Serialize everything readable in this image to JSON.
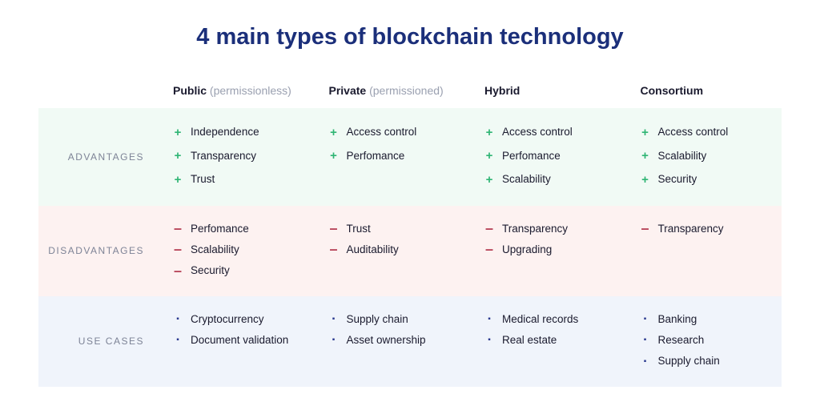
{
  "title": "4 main types of blockchain technology",
  "title_fontsize": 29,
  "title_color": "#1b2f7a",
  "colors": {
    "text": "#1a1a2e",
    "muted": "#9aa0b0",
    "row_label": "#7d8396",
    "plus": "#2fb574",
    "minus": "#b8455a",
    "bullet": "#2b3a8f",
    "bg_adv": "#f1faf5",
    "bg_dis": "#fdf2f1",
    "bg_use": "#f0f4fb",
    "background": "#ffffff"
  },
  "row_labels": [
    "ADVANTAGES",
    "DISADVANTAGES",
    "USE CASES"
  ],
  "columns": [
    {
      "main": "Public",
      "sub": "(permissionless)"
    },
    {
      "main": "Private",
      "sub": "(permissioned)"
    },
    {
      "main": "Hybrid",
      "sub": ""
    },
    {
      "main": "Consortium",
      "sub": ""
    }
  ],
  "rows": [
    {
      "kind": "advantages",
      "marker": "plus",
      "cells": [
        [
          "Independence",
          "Transparency",
          "Trust"
        ],
        [
          "Access control",
          "Perfomance"
        ],
        [
          "Access control",
          "Perfomance",
          "Scalability"
        ],
        [
          "Access control",
          "Scalability",
          "Security"
        ]
      ]
    },
    {
      "kind": "disadvantages",
      "marker": "minus",
      "cells": [
        [
          "Perfomance",
          "Scalability",
          "Security"
        ],
        [
          "Trust",
          "Auditability"
        ],
        [
          "Transparency",
          "Upgrading"
        ],
        [
          "Transparency"
        ]
      ]
    },
    {
      "kind": "usecases",
      "marker": "bullet",
      "cells": [
        [
          "Cryptocurrency",
          "Document validation"
        ],
        [
          "Supply chain",
          "Asset ownership"
        ],
        [
          "Medical records",
          "Real estate"
        ],
        [
          "Banking",
          "Research",
          "Supply chain"
        ]
      ]
    }
  ]
}
